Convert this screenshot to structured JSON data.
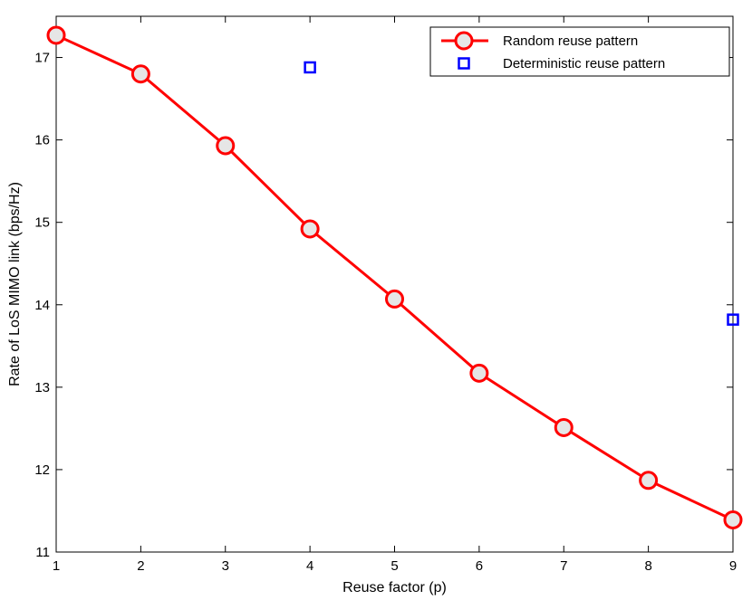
{
  "chart_data": {
    "type": "line",
    "xlabel": "Reuse factor (p)",
    "ylabel": "Rate of LoS MIMO link (bps/Hz)",
    "xlim": [
      1,
      9
    ],
    "ylim": [
      11,
      17.5
    ],
    "xticks": [
      1,
      2,
      3,
      4,
      5,
      6,
      7,
      8,
      9
    ],
    "yticks": [
      11,
      12,
      13,
      14,
      15,
      16,
      17
    ],
    "grid": false,
    "legend_position": "top-right",
    "series": [
      {
        "name": "Random reuse pattern",
        "color": "#ff0000",
        "marker": "circle",
        "line": true,
        "x": [
          1,
          2,
          3,
          4,
          5,
          6,
          7,
          8,
          9
        ],
        "y": [
          17.27,
          16.8,
          15.93,
          14.92,
          14.07,
          13.17,
          12.51,
          11.87,
          11.39
        ]
      },
      {
        "name": "Deterministic reuse pattern",
        "color": "#0000ff",
        "marker": "square",
        "line": false,
        "x": [
          4,
          9
        ],
        "y": [
          16.88,
          13.82
        ]
      }
    ]
  }
}
